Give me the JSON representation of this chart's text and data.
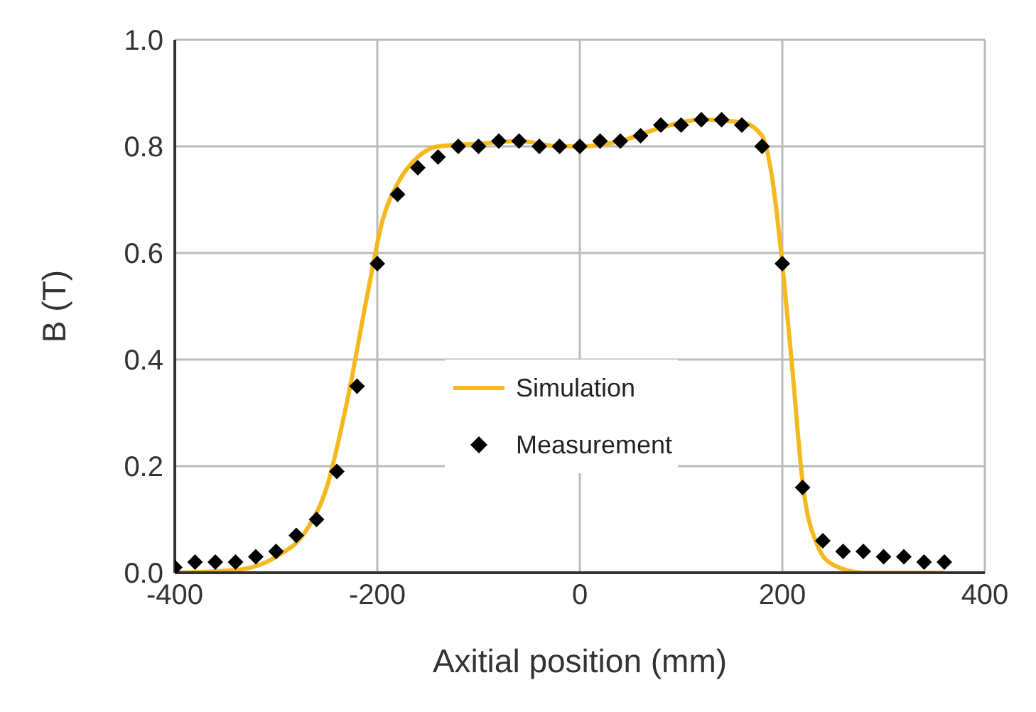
{
  "chart_data": {
    "type": "line",
    "xlabel": "Axitial position (mm)",
    "ylabel": "B (T)",
    "xlim": [
      -400,
      400
    ],
    "xticks": [
      -400,
      -200,
      0,
      200,
      400
    ],
    "ylim": [
      0,
      1
    ],
    "yticks": [
      {
        "value": 0,
        "label": "0.0"
      },
      {
        "value": 0.2,
        "label": "0.2"
      },
      {
        "value": 0.4,
        "label": "0.4"
      },
      {
        "value": 0.6,
        "label": "0.6"
      },
      {
        "value": 0.8,
        "label": "0.8"
      },
      {
        "value": 1,
        "label": "1.0"
      }
    ],
    "grid": true,
    "legend": "bottom",
    "line_style": "solid",
    "series": [
      {
        "name": "Simulation",
        "type": "line",
        "marker": "none",
        "color": "#f5b920",
        "x": [
          -400,
          -340,
          -300,
          -270,
          -250,
          -230,
          -210,
          -195,
          -180,
          -160,
          -140,
          -100,
          -60,
          -20,
          0,
          40,
          80,
          120,
          160,
          180,
          190,
          200,
          210,
          220,
          235,
          250,
          280,
          360
        ],
        "values": [
          0,
          0.005,
          0.03,
          0.08,
          0.16,
          0.32,
          0.52,
          0.66,
          0.73,
          0.78,
          0.8,
          0.805,
          0.81,
          0.8,
          0.8,
          0.81,
          0.835,
          0.85,
          0.845,
          0.82,
          0.74,
          0.58,
          0.38,
          0.17,
          0.05,
          0.015,
          0,
          0
        ]
      },
      {
        "name": "Measurement",
        "type": "scatter",
        "marker": "diamond",
        "color": "#000000",
        "x": [
          -400,
          -380,
          -360,
          -340,
          -320,
          -300,
          -280,
          -260,
          -240,
          -220,
          -200,
          -180,
          -160,
          -140,
          -120,
          -100,
          -80,
          -60,
          -40,
          -20,
          0,
          20,
          40,
          60,
          80,
          100,
          120,
          140,
          160,
          180,
          200,
          220,
          240,
          260,
          280,
          300,
          320,
          340,
          360
        ],
        "values": [
          0.01,
          0.02,
          0.02,
          0.02,
          0.03,
          0.04,
          0.07,
          0.1,
          0.19,
          0.35,
          0.58,
          0.71,
          0.76,
          0.78,
          0.8,
          0.8,
          0.81,
          0.81,
          0.8,
          0.8,
          0.8,
          0.81,
          0.81,
          0.82,
          0.84,
          0.84,
          0.85,
          0.85,
          0.84,
          0.8,
          0.58,
          0.16,
          0.06,
          0.04,
          0.04,
          0.03,
          0.03,
          0.02,
          0.02
        ]
      }
    ]
  }
}
